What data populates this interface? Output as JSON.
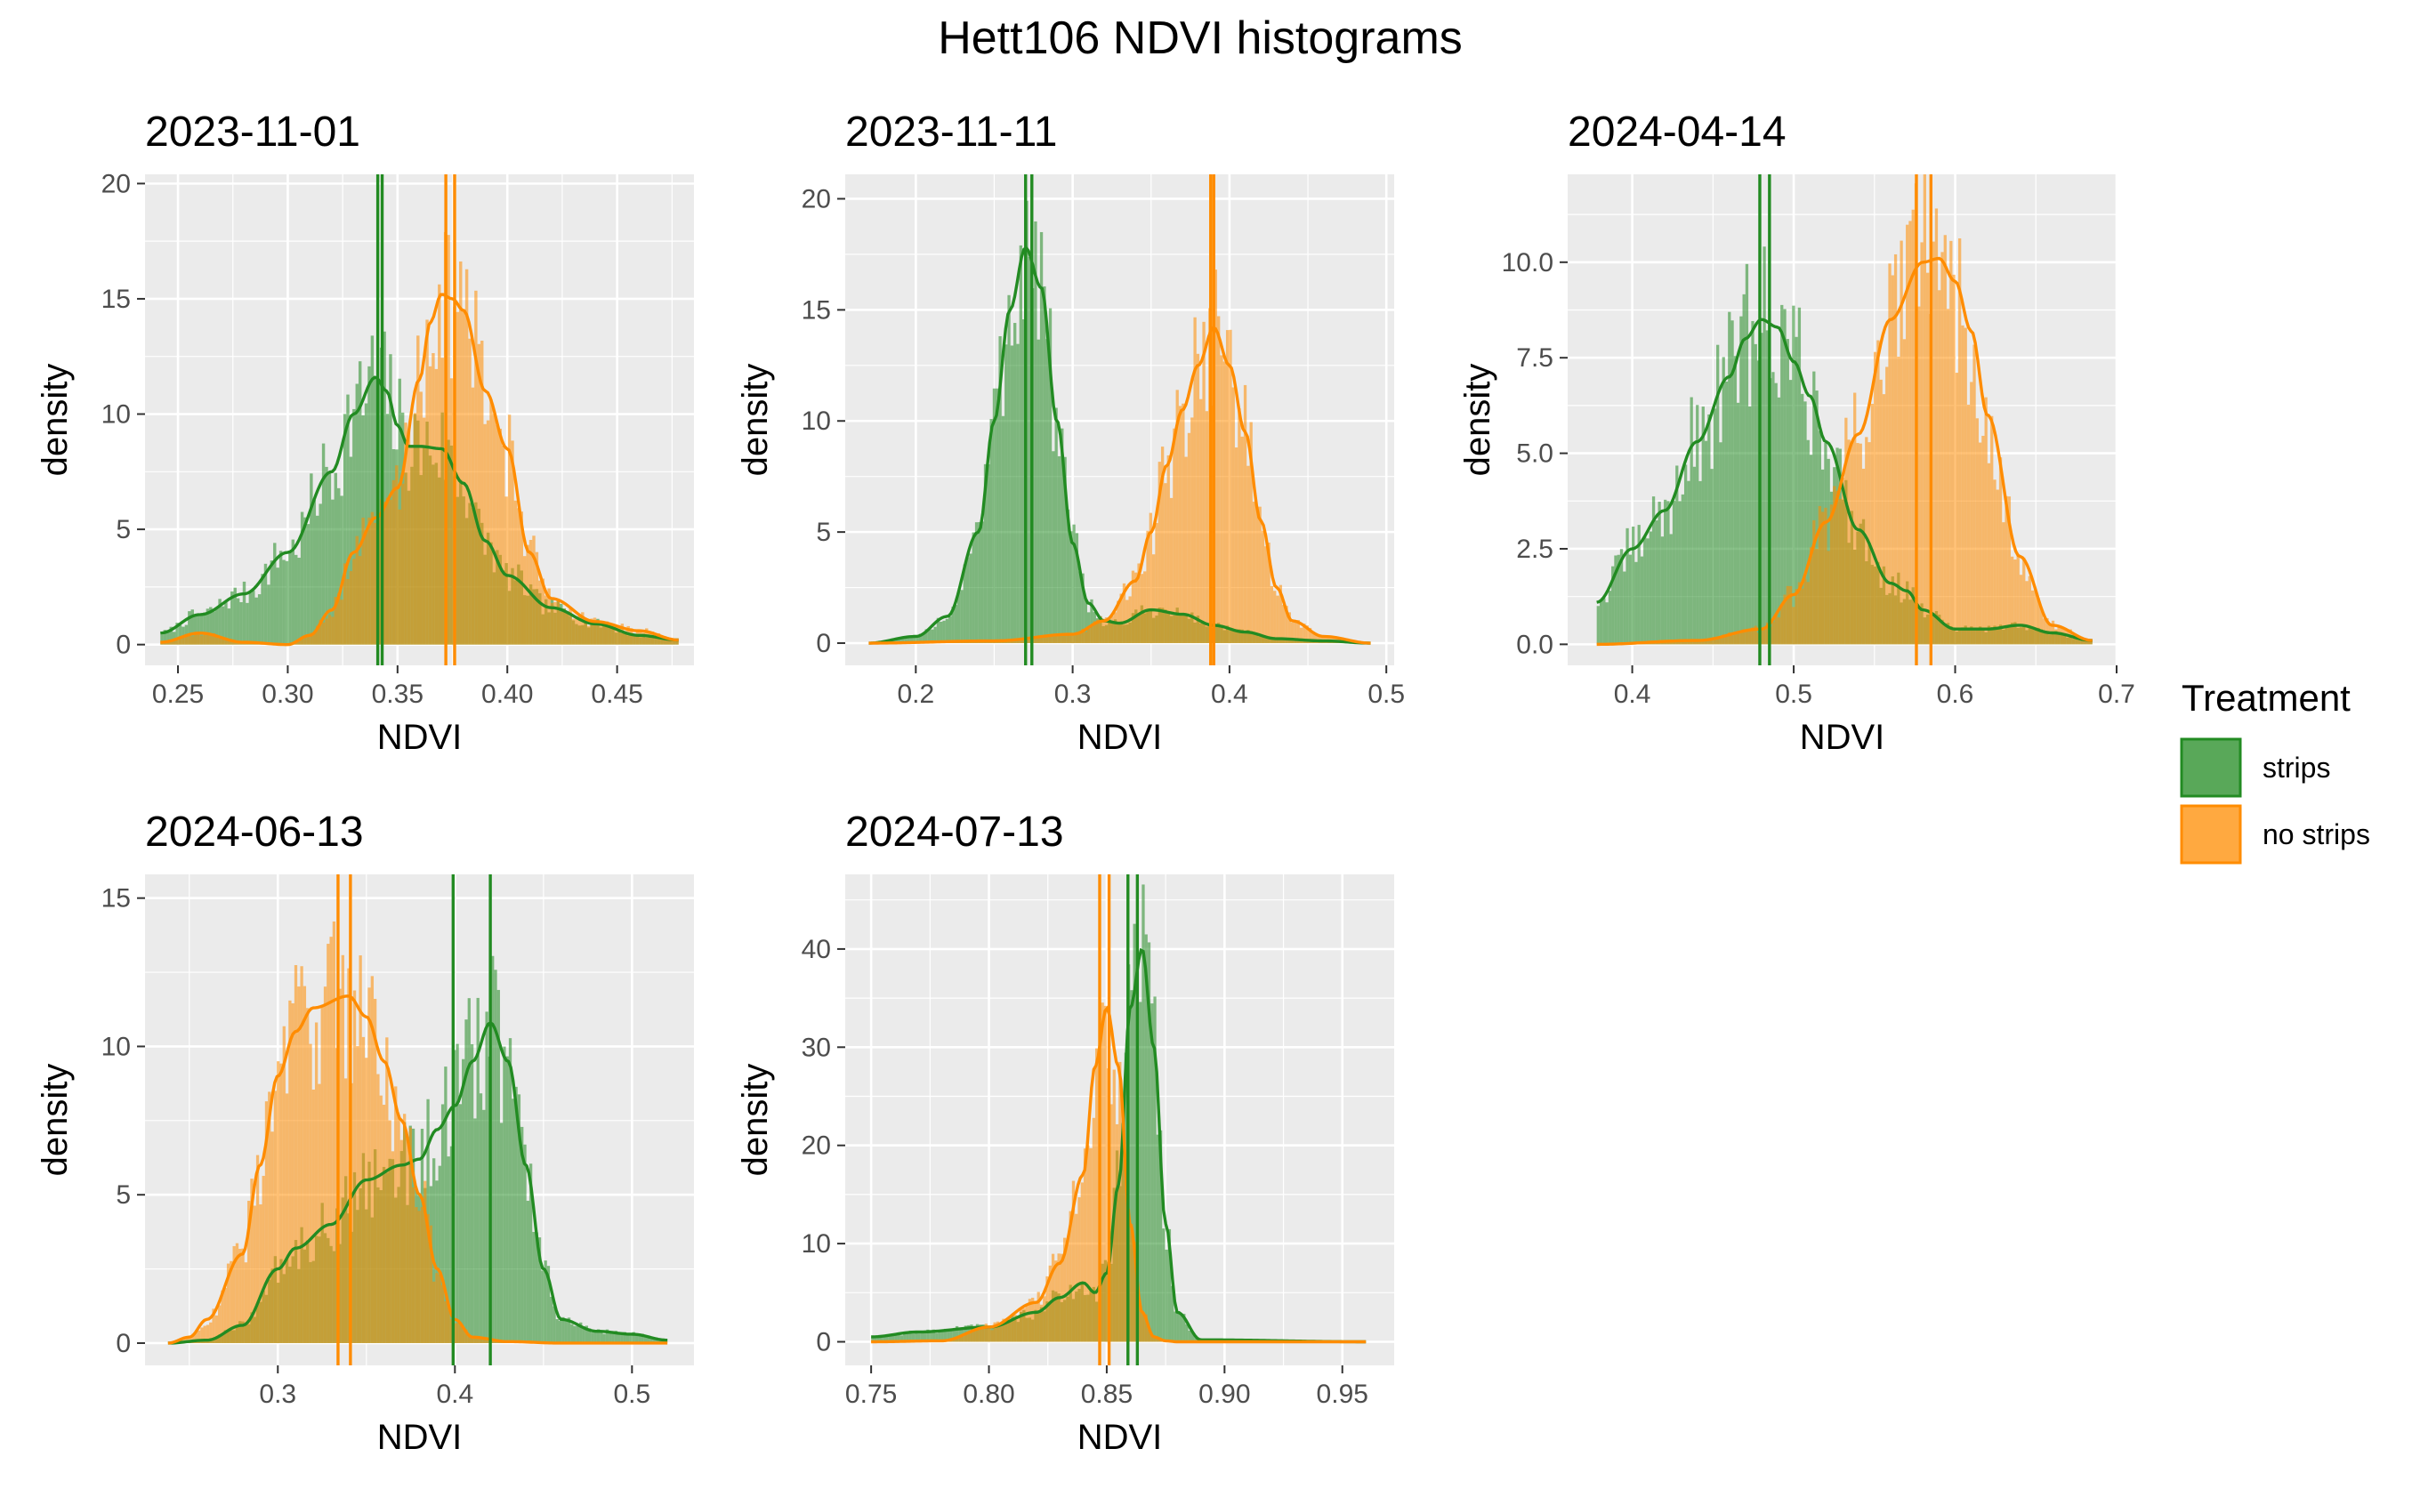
{
  "title": "Hett106 NDVI histograms",
  "colors": {
    "strips": "#228B22",
    "no_strips": "#FF8C00",
    "panel_bg": "#EBEBEB",
    "grid": "#FFFFFF"
  },
  "legend": {
    "title": "Treatment",
    "items": [
      {
        "label": "strips",
        "color": "#228B22"
      },
      {
        "label": "no strips",
        "color": "#FF8C00"
      }
    ],
    "placement": "right"
  },
  "chart_data": [
    {
      "type": "histogram",
      "title": "2023-11-01",
      "xlabel": "NDVI",
      "ylabel": "density",
      "xlim": [
        0.235,
        0.485
      ],
      "ylim": [
        -0.9,
        20.4
      ],
      "xticks": [
        0.25,
        0.3,
        0.35,
        0.4,
        0.45
      ],
      "xtick_labels": [
        "0.25",
        "0.30",
        "0.35",
        "0.40",
        "0.45"
      ],
      "yticks": [
        0,
        5,
        10,
        15,
        20
      ],
      "ytick_labels": [
        "0",
        "5",
        "10",
        "15",
        "20"
      ],
      "series": [
        {
          "name": "strips",
          "density": {
            "x": [
              0.242,
              0.26,
              0.28,
              0.3,
              0.32,
              0.33,
              0.34,
              0.345,
              0.35,
              0.355,
              0.36,
              0.37,
              0.38,
              0.39,
              0.4,
              0.42,
              0.44,
              0.46,
              0.478
            ],
            "y": [
              0.5,
              1.3,
              2.2,
              4.0,
              7.5,
              10.0,
              11.6,
              11.0,
              9.5,
              8.6,
              8.6,
              8.5,
              7.0,
              4.5,
              3.0,
              1.6,
              0.9,
              0.4,
              0.2
            ]
          },
          "vlines": [
            0.341,
            0.343
          ]
        },
        {
          "name": "no strips",
          "density": {
            "x": [
              0.242,
              0.26,
              0.28,
              0.3,
              0.31,
              0.32,
              0.33,
              0.34,
              0.35,
              0.36,
              0.365,
              0.37,
              0.375,
              0.38,
              0.39,
              0.4,
              0.41,
              0.42,
              0.44,
              0.46,
              0.478
            ],
            "y": [
              0.1,
              0.5,
              0.1,
              0.0,
              0.4,
              1.5,
              4.0,
              5.5,
              6.8,
              11.5,
              14.0,
              15.2,
              15.0,
              14.5,
              11.0,
              8.5,
              4.0,
              2.0,
              1.0,
              0.6,
              0.2
            ]
          },
          "vlines": [
            0.372,
            0.376
          ]
        }
      ]
    },
    {
      "type": "histogram",
      "title": "2023-11-11",
      "xlabel": "NDVI",
      "ylabel": "density",
      "xlim": [
        0.155,
        0.505
      ],
      "ylim": [
        -1.0,
        21.1
      ],
      "xticks": [
        0.2,
        0.3,
        0.4,
        0.5
      ],
      "xtick_labels": [
        "0.2",
        "0.3",
        "0.4",
        "0.5"
      ],
      "yticks": [
        0,
        5,
        10,
        15,
        20
      ],
      "ytick_labels": [
        "0",
        "5",
        "10",
        "15",
        "20"
      ],
      "series": [
        {
          "name": "strips",
          "density": {
            "x": [
              0.17,
              0.2,
              0.22,
              0.24,
              0.25,
              0.26,
              0.27,
              0.28,
              0.29,
              0.3,
              0.31,
              0.32,
              0.33,
              0.35,
              0.37,
              0.39,
              0.41,
              0.43,
              0.46,
              0.49
            ],
            "y": [
              0.0,
              0.3,
              1.2,
              5.0,
              10.0,
              15.0,
              17.8,
              16.0,
              10.0,
              4.5,
              1.8,
              1.0,
              0.9,
              1.5,
              1.3,
              0.8,
              0.5,
              0.2,
              0.1,
              0.0
            ]
          },
          "vlines": [
            0.27,
            0.274
          ]
        },
        {
          "name": "no strips",
          "density": {
            "x": [
              0.17,
              0.25,
              0.3,
              0.32,
              0.34,
              0.35,
              0.36,
              0.37,
              0.38,
              0.39,
              0.4,
              0.41,
              0.42,
              0.43,
              0.44,
              0.46,
              0.49
            ],
            "y": [
              0.0,
              0.1,
              0.4,
              1.0,
              2.8,
              5.0,
              8.0,
              10.5,
              12.5,
              14.2,
              12.5,
              9.5,
              5.5,
              2.5,
              1.0,
              0.3,
              0.0
            ]
          },
          "vlines": [
            0.388,
            0.39
          ]
        }
      ]
    },
    {
      "type": "histogram",
      "title": "2024-04-14",
      "xlabel": "NDVI",
      "ylabel": "density",
      "xlim": [
        0.36,
        0.7
      ],
      "ylim": [
        -0.55,
        12.3
      ],
      "xticks": [
        0.4,
        0.5,
        0.6,
        0.7
      ],
      "xtick_labels": [
        "0.4",
        "0.5",
        "0.6",
        "0.7"
      ],
      "yticks": [
        0,
        2.5,
        5.0,
        7.5,
        10.0
      ],
      "ytick_labels": [
        "0.0",
        "2.5",
        "5.0",
        "7.5",
        "10.0"
      ],
      "series": [
        {
          "name": "strips",
          "density": {
            "x": [
              0.378,
              0.4,
              0.42,
              0.44,
              0.46,
              0.47,
              0.48,
              0.49,
              0.5,
              0.51,
              0.52,
              0.54,
              0.56,
              0.57,
              0.58,
              0.6,
              0.62,
              0.64,
              0.66,
              0.685
            ],
            "y": [
              1.1,
              2.5,
              3.5,
              5.3,
              7.0,
              8.0,
              8.5,
              8.3,
              7.4,
              6.5,
              5.3,
              3.0,
              1.6,
              1.4,
              0.9,
              0.4,
              0.4,
              0.5,
              0.3,
              0.1
            ]
          },
          "vlines": [
            0.479,
            0.485
          ]
        },
        {
          "name": "no strips",
          "density": {
            "x": [
              0.378,
              0.44,
              0.48,
              0.5,
              0.52,
              0.54,
              0.56,
              0.58,
              0.59,
              0.6,
              0.61,
              0.62,
              0.64,
              0.66,
              0.685
            ],
            "y": [
              0.0,
              0.1,
              0.4,
              1.3,
              3.2,
              5.5,
              8.5,
              10.0,
              10.1,
              9.5,
              8.2,
              6.0,
              2.3,
              0.5,
              0.1
            ]
          },
          "vlines": [
            0.576,
            0.585
          ]
        }
      ]
    },
    {
      "type": "histogram",
      "title": "2024-06-13",
      "xlabel": "NDVI",
      "ylabel": "density",
      "xlim": [
        0.225,
        0.535
      ],
      "ylim": [
        -0.75,
        15.8
      ],
      "xticks": [
        0.3,
        0.4,
        0.5
      ],
      "xtick_labels": [
        "0.3",
        "0.4",
        "0.5"
      ],
      "yticks": [
        0,
        5,
        10,
        15
      ],
      "ytick_labels": [
        "0",
        "5",
        "10",
        "15"
      ],
      "series": [
        {
          "name": "strips",
          "density": {
            "x": [
              0.238,
              0.26,
              0.28,
              0.3,
              0.31,
              0.33,
              0.35,
              0.37,
              0.38,
              0.39,
              0.4,
              0.41,
              0.42,
              0.43,
              0.44,
              0.45,
              0.46,
              0.48,
              0.5,
              0.52
            ],
            "y": [
              0.0,
              0.1,
              0.6,
              2.5,
              3.2,
              4.0,
              5.5,
              6.0,
              6.2,
              7.2,
              8.0,
              9.5,
              10.8,
              9.5,
              6.0,
              2.5,
              0.8,
              0.4,
              0.3,
              0.1
            ]
          },
          "vlines": [
            0.399,
            0.42
          ]
        },
        {
          "name": "no strips",
          "density": {
            "x": [
              0.238,
              0.25,
              0.26,
              0.28,
              0.29,
              0.3,
              0.31,
              0.32,
              0.34,
              0.35,
              0.36,
              0.37,
              0.38,
              0.39,
              0.4,
              0.41,
              0.43,
              0.46,
              0.52
            ],
            "y": [
              0.0,
              0.2,
              0.8,
              3.0,
              6.0,
              9.0,
              10.5,
              11.3,
              11.7,
              11.0,
              9.5,
              7.5,
              5.0,
              2.5,
              0.8,
              0.2,
              0.05,
              0.0,
              0.0
            ]
          },
          "vlines": [
            0.334,
            0.341
          ]
        }
      ]
    },
    {
      "type": "histogram",
      "title": "2024-07-13",
      "xlabel": "NDVI",
      "ylabel": "density",
      "xlim": [
        0.739,
        0.972
      ],
      "ylim": [
        -2.4,
        47.6
      ],
      "xticks": [
        0.75,
        0.8,
        0.85,
        0.9,
        0.95
      ],
      "xtick_labels": [
        "0.75",
        "0.80",
        "0.85",
        "0.90",
        "0.95"
      ],
      "yticks": [
        0,
        10,
        20,
        30,
        40
      ],
      "ytick_labels": [
        "0",
        "10",
        "20",
        "30",
        "40"
      ],
      "series": [
        {
          "name": "strips",
          "density": {
            "x": [
              0.75,
              0.77,
              0.8,
              0.82,
              0.83,
              0.84,
              0.845,
              0.85,
              0.855,
              0.86,
              0.865,
              0.87,
              0.875,
              0.88,
              0.89,
              0.96
            ],
            "y": [
              0.5,
              1.0,
              1.5,
              3.0,
              4.5,
              6.0,
              5.0,
              7.0,
              16.0,
              34.0,
              40.0,
              30.0,
              12.0,
              3.0,
              0.2,
              0.0
            ]
          },
          "vlines": [
            0.859,
            0.863
          ]
        },
        {
          "name": "no strips",
          "density": {
            "x": [
              0.75,
              0.78,
              0.8,
              0.82,
              0.83,
              0.84,
              0.845,
              0.85,
              0.855,
              0.86,
              0.865,
              0.87,
              0.875,
              0.88,
              0.96
            ],
            "y": [
              0.0,
              0.1,
              1.5,
              4.0,
              8.0,
              17.0,
              28.0,
              34.0,
              28.0,
              12.0,
              3.0,
              0.5,
              0.1,
              0.0,
              0.0
            ]
          },
          "vlines": [
            0.847,
            0.851
          ]
        }
      ]
    }
  ]
}
